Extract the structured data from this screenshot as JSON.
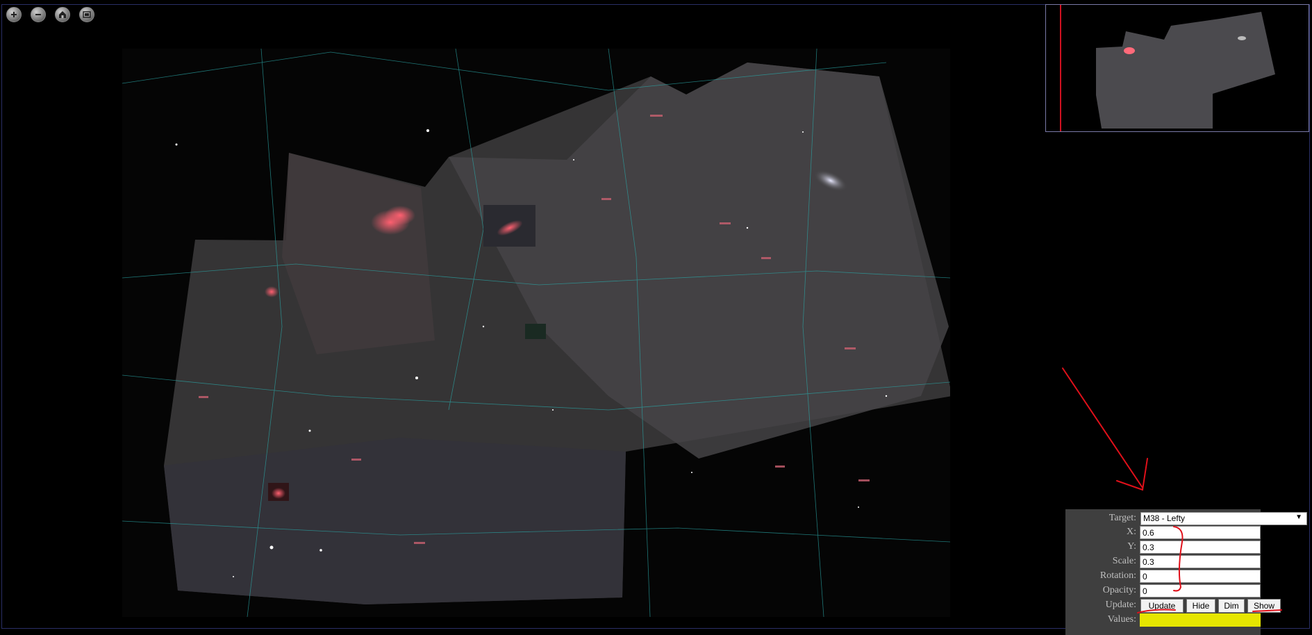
{
  "toolbar": {
    "zoom_in_icon": "plus-circle-icon",
    "zoom_out_icon": "minus-circle-icon",
    "home_icon": "home-icon",
    "fullscreen_icon": "fullscreen-icon"
  },
  "form": {
    "target_label": "Target:",
    "target_value": "M38 - Lefty",
    "x_label": "X:",
    "x_value": "0.6",
    "y_label": "Y:",
    "y_value": "0.3",
    "scale_label": "Scale:",
    "scale_value": "0.3",
    "rotation_label": "Rotation:",
    "rotation_value": "0",
    "opacity_label": "Opacity:",
    "opacity_value": "0",
    "update_label": "Update:",
    "values_label": "Values:",
    "buttons": {
      "update": "Update",
      "hide": "Hide",
      "dim": "Dim",
      "show": "Show"
    }
  },
  "colors": {
    "panel_bg": "#3f3f3f",
    "highlight": "#e6e600",
    "annotation": "#e0101a",
    "constellation_lines": "#2aa7a7"
  }
}
